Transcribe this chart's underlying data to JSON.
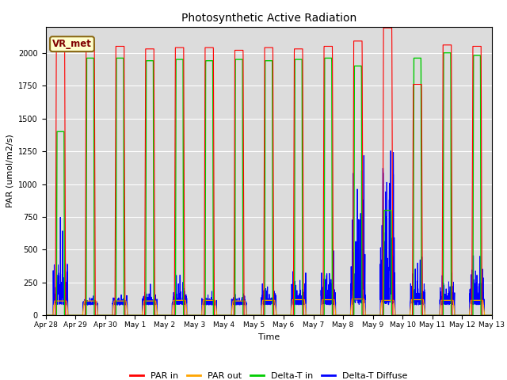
{
  "title": "Photosynthetic Active Radiation",
  "xlabel": "Time",
  "ylabel": "PAR (umol/m2/s)",
  "ylim": [
    0,
    2200
  ],
  "annotation": "VR_met",
  "legend": [
    "PAR in",
    "PAR out",
    "Delta-T in",
    "Delta-T Diffuse"
  ],
  "legend_colors": [
    "#ff0000",
    "#ffa500",
    "#00cc00",
    "#0000ff"
  ],
  "background_color": "#dcdcdc",
  "x_tick_labels": [
    "Apr 28",
    "Apr 29",
    "Apr 30",
    "May 1",
    "May 2",
    "May 3",
    "May 4",
    "May 5",
    "May 6",
    "May 7",
    "May 8",
    "May 9",
    "May 10",
    "May 11",
    "May 12",
    "May 13"
  ],
  "n_days": 15,
  "points_per_day": 288
}
